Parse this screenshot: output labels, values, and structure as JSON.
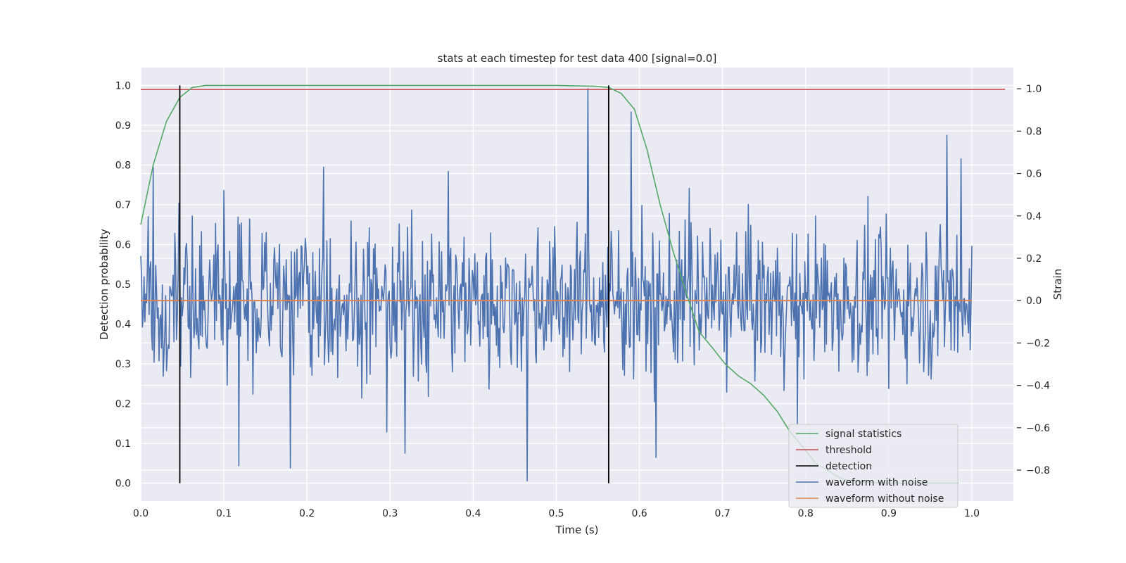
{
  "chart_data": {
    "type": "line",
    "title": "stats at each timestep for test data 400 [signal=0.0]",
    "xlabel": "Time (s)",
    "ylabel_left": "Detection probability",
    "ylabel_right": "Strain",
    "xlim": [
      0.0,
      1.05
    ],
    "ylim_left": [
      -0.045,
      1.045
    ],
    "ylim_right": [
      -0.946,
      1.1
    ],
    "x_ticks": [
      0.0,
      0.1,
      0.2,
      0.3,
      0.4,
      0.5,
      0.6,
      0.7,
      0.8,
      0.9,
      1.0
    ],
    "x_tick_labels": [
      "0.0",
      "0.1",
      "0.2",
      "0.3",
      "0.4",
      "0.5",
      "0.6",
      "0.7",
      "0.8",
      "0.9",
      "1.0"
    ],
    "y_left_ticks": [
      0.0,
      0.1,
      0.2,
      0.3,
      0.4,
      0.5,
      0.6,
      0.7,
      0.8,
      0.9,
      1.0
    ],
    "y_left_tick_labels": [
      "0.0",
      "0.1",
      "0.2",
      "0.3",
      "0.4",
      "0.5",
      "0.6",
      "0.7",
      "0.8",
      "0.9",
      "1.0"
    ],
    "y_right_ticks": [
      -0.8,
      -0.6,
      -0.4,
      -0.2,
      0.0,
      0.2,
      0.4,
      0.6,
      0.8,
      1.0
    ],
    "y_right_tick_labels": [
      "−0.8",
      "−0.6",
      "−0.4",
      "−0.2",
      "0.0",
      "0.2",
      "0.4",
      "0.6",
      "0.8",
      "1.0"
    ],
    "grid": true,
    "legend_position": "lower-right",
    "background_color": "#eaeaf2",
    "series": [
      {
        "name": "signal statistics",
        "axis": "left",
        "color": "#55a868",
        "x": [
          0.0,
          0.015,
          0.031,
          0.047,
          0.062,
          0.078,
          0.1,
          0.2,
          0.3,
          0.4,
          0.5,
          0.547,
          0.563,
          0.578,
          0.594,
          0.609,
          0.625,
          0.641,
          0.656,
          0.672,
          0.688,
          0.703,
          0.719,
          0.734,
          0.75,
          0.766,
          0.781,
          0.797,
          0.812,
          0.828,
          0.844,
          0.859,
          0.875,
          0.891,
          0.906,
          0.922,
          0.938,
          0.953,
          0.969,
          0.984
        ],
        "y": [
          0.65,
          0.8,
          0.91,
          0.97,
          0.995,
          1.0,
          1.0,
          1.0,
          1.0,
          1.0,
          1.0,
          0.998,
          0.995,
          0.98,
          0.94,
          0.84,
          0.7,
          0.58,
          0.48,
          0.38,
          0.34,
          0.3,
          0.27,
          0.25,
          0.22,
          0.18,
          0.13,
          0.09,
          0.05,
          0.03,
          0.01,
          0.005,
          0.002,
          0.001,
          0.0,
          0.0,
          0.0,
          0.0,
          0.0,
          0.0
        ]
      },
      {
        "name": "threshold",
        "axis": "left",
        "color": "#c44e52",
        "x": [
          0.0,
          1.04
        ],
        "y": [
          0.99,
          0.99
        ]
      },
      {
        "name": "waveform with noise",
        "axis": "right",
        "color": "#4c72b0",
        "noise_amplitude_typical": 0.17,
        "x": [
          0.015,
          0.046,
          0.062,
          0.1,
          0.118,
          0.18,
          0.22,
          0.296,
          0.318,
          0.37,
          0.465,
          0.538,
          0.59,
          0.62,
          0.66,
          0.79,
          0.97,
          0.987
        ],
        "y": [
          0.63,
          0.46,
          0.4,
          0.52,
          -0.78,
          -0.79,
          0.63,
          -0.62,
          -0.72,
          0.61,
          -0.85,
          1.0,
          0.89,
          -0.74,
          0.53,
          -0.58,
          0.78,
          0.67
        ]
      },
      {
        "name": "waveform without noise",
        "axis": "right",
        "color": "#dd8452",
        "x": [
          0.0,
          1.0
        ],
        "y": [
          0.0,
          0.0
        ]
      }
    ],
    "detections": {
      "name": "detection",
      "color": "#000000",
      "x": [
        0.047,
        0.563
      ],
      "y_range": [
        0.0,
        1.0
      ]
    }
  }
}
